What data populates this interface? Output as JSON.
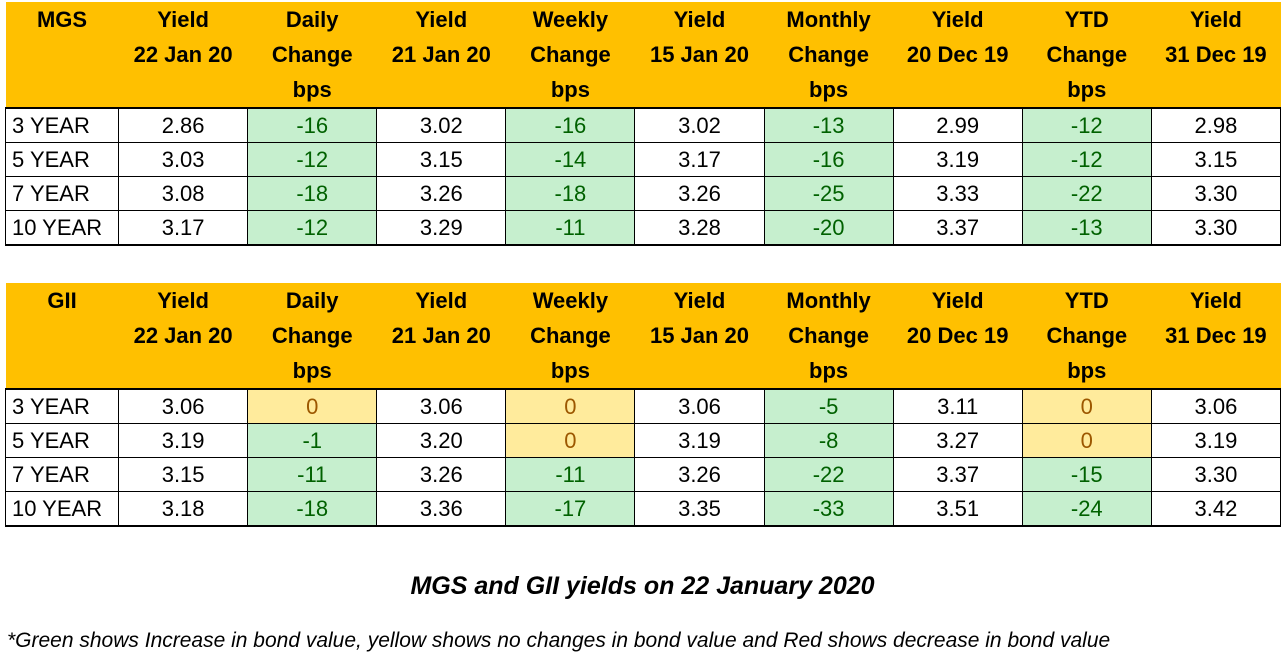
{
  "tables": [
    {
      "id": "mgs",
      "header": [
        [
          "MGS"
        ],
        [
          "Yield",
          "22 Jan 20"
        ],
        [
          "Daily",
          "Change",
          "bps"
        ],
        [
          "Yield",
          "21 Jan 20"
        ],
        [
          "Weekly",
          "Change",
          "bps"
        ],
        [
          "Yield",
          "15 Jan 20"
        ],
        [
          "Monthly",
          "Change",
          "bps"
        ],
        [
          "Yield",
          "20 Dec 19"
        ],
        [
          "YTD",
          "Change",
          "bps"
        ],
        [
          "Yield",
          "31 Dec 19"
        ]
      ],
      "rows": [
        [
          "3 YEAR",
          "2.86",
          "-16",
          "3.02",
          "-16",
          "3.02",
          "-13",
          "2.99",
          "-12",
          "2.98"
        ],
        [
          "5 YEAR",
          "3.03",
          "-12",
          "3.15",
          "-14",
          "3.17",
          "-16",
          "3.19",
          "-12",
          "3.15"
        ],
        [
          "7 YEAR",
          "3.08",
          "-18",
          "3.26",
          "-18",
          "3.26",
          "-25",
          "3.33",
          "-22",
          "3.30"
        ],
        [
          "10 YEAR",
          "3.17",
          "-12",
          "3.29",
          "-11",
          "3.28",
          "-20",
          "3.37",
          "-13",
          "3.30"
        ]
      ]
    },
    {
      "id": "gii",
      "header": [
        [
          "GII"
        ],
        [
          "Yield",
          "22 Jan 20"
        ],
        [
          "Daily",
          "Change",
          "bps"
        ],
        [
          "Yield",
          "21 Jan 20"
        ],
        [
          "Weekly",
          "Change",
          "bps"
        ],
        [
          "Yield",
          "15 Jan 20"
        ],
        [
          "Monthly",
          "Change",
          "bps"
        ],
        [
          "Yield",
          "20 Dec 19"
        ],
        [
          "YTD",
          "Change",
          "bps"
        ],
        [
          "Yield",
          "31 Dec 19"
        ]
      ],
      "rows": [
        [
          "3 YEAR",
          "3.06",
          "0",
          "3.06",
          "0",
          "3.06",
          "-5",
          "3.11",
          "0",
          "3.06"
        ],
        [
          "5 YEAR",
          "3.19",
          "-1",
          "3.20",
          "0",
          "3.19",
          "-8",
          "3.27",
          "0",
          "3.19"
        ],
        [
          "7 YEAR",
          "3.15",
          "-11",
          "3.26",
          "-11",
          "3.26",
          "-22",
          "3.37",
          "-15",
          "3.30"
        ],
        [
          "10 YEAR",
          "3.18",
          "-18",
          "3.36",
          "-17",
          "3.35",
          "-33",
          "3.51",
          "-24",
          "3.42"
        ]
      ]
    }
  ],
  "caption": "MGS and GII yields on 22 January 2020",
  "note": "*Green shows Increase in bond value, yellow shows no changes in bond value and Red shows decrease in bond value",
  "colors": {
    "header_bg": "#ffc000",
    "increase_fill": "#c6efce",
    "increase_text": "#006100",
    "no_change_fill": "#ffeb9c",
    "no_change_text": "#9c5700",
    "decrease_fill": "#ffc7ce",
    "decrease_text": "#9c0006"
  }
}
